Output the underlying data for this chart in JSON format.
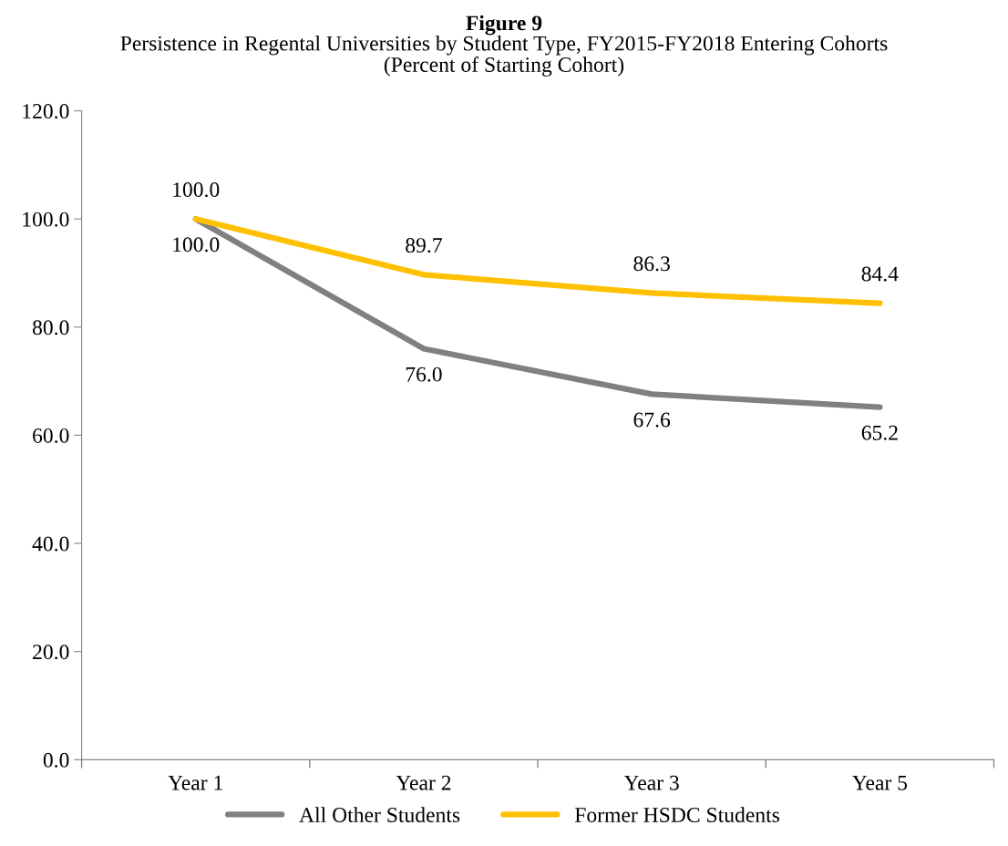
{
  "chart_data": {
    "type": "line",
    "title": "Figure 9",
    "subtitle": "Persistence in Regental Universities by Student Type, FY2015-FY2018 Entering Cohorts\n(Percent of Starting Cohort)",
    "categories": [
      "Year 1",
      "Year 2",
      "Year 3",
      "Year 5"
    ],
    "series": [
      {
        "name": "All Other Students",
        "color": "#808080",
        "values": [
          100.0,
          76.0,
          67.6,
          65.2
        ],
        "value_labels": [
          "100.0",
          "76.0",
          "67.6",
          "65.2"
        ]
      },
      {
        "name": "Former HSDC Students",
        "color": "#ffc000",
        "values": [
          100.0,
          89.7,
          86.3,
          84.4
        ],
        "value_labels": [
          "100.0",
          "89.7",
          "86.3",
          "84.4"
        ]
      }
    ],
    "ylim": [
      0,
      120
    ],
    "yticks": [
      {
        "value": 0,
        "label": "0.0"
      },
      {
        "value": 20,
        "label": "20.0"
      },
      {
        "value": 40,
        "label": "40.0"
      },
      {
        "value": 60,
        "label": "60.0"
      },
      {
        "value": 80,
        "label": "80.0"
      },
      {
        "value": 100,
        "label": "100.0"
      },
      {
        "value": 120,
        "label": "120.0"
      }
    ],
    "grid": false,
    "legend": "bottom",
    "marker": "none",
    "line_style": "solid"
  }
}
